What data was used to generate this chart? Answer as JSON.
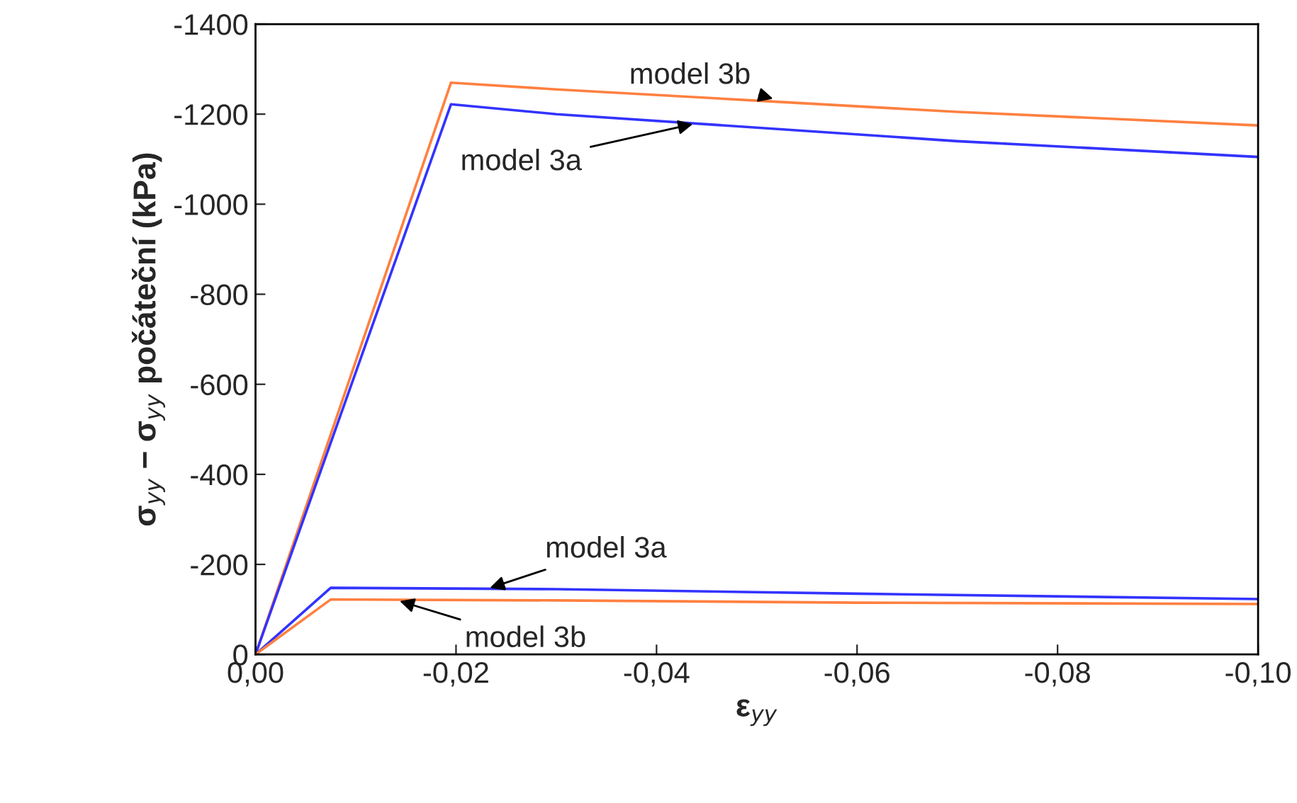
{
  "chart_data": {
    "type": "line",
    "xlabel": "ε$_{yy}$",
    "ylabel": "σ$_{yy}$ − σ$_{yy}$ počáteční (kPa)",
    "xlim": [
      0,
      -0.1
    ],
    "ylim": [
      0,
      -1400
    ],
    "xticks": [
      {
        "value": 0,
        "label": "0,00"
      },
      {
        "value": -0.02,
        "label": "-0,02"
      },
      {
        "value": -0.04,
        "label": "-0,04"
      },
      {
        "value": -0.06,
        "label": "-0,06"
      },
      {
        "value": -0.08,
        "label": "-0,08"
      },
      {
        "value": -0.1,
        "label": "-0,10"
      }
    ],
    "yticks": [
      0,
      -200,
      -400,
      -600,
      -800,
      -1000,
      -1200,
      -1400
    ],
    "grid": false,
    "legend": false,
    "series": [
      {
        "color": "#ff8040",
        "x": [
          0,
          -0.0195,
          -0.03,
          -0.05,
          -0.07,
          -0.1
        ],
        "values": [
          0,
          -1270,
          -1255,
          -1230,
          -1205,
          -1175
        ]
      },
      {
        "color": "#3333ff",
        "x": [
          0,
          -0.0195,
          -0.03,
          -0.05,
          -0.07,
          -0.1
        ],
        "values": [
          0,
          -1222,
          -1200,
          -1170,
          -1140,
          -1105
        ]
      },
      {
        "color": "#3333ff",
        "x": [
          0,
          -0.0075,
          -0.03,
          -0.06,
          -0.1
        ],
        "values": [
          0,
          -148,
          -145,
          -135,
          -123
        ]
      },
      {
        "color": "#ff8040",
        "x": [
          0,
          -0.0075,
          -0.03,
          -0.06,
          -0.1
        ],
        "values": [
          0,
          -122,
          -120,
          -115,
          -112
        ]
      }
    ],
    "annotations": [
      {
        "text": "model 3b",
        "x": -0.052,
        "y": -1232
      },
      {
        "text": "model 3a",
        "x": -0.044,
        "y": -1180
      },
      {
        "text": "model 3a",
        "x": -0.023,
        "y": -145
      },
      {
        "text": "model 3b",
        "x": -0.014,
        "y": -121
      }
    ]
  }
}
